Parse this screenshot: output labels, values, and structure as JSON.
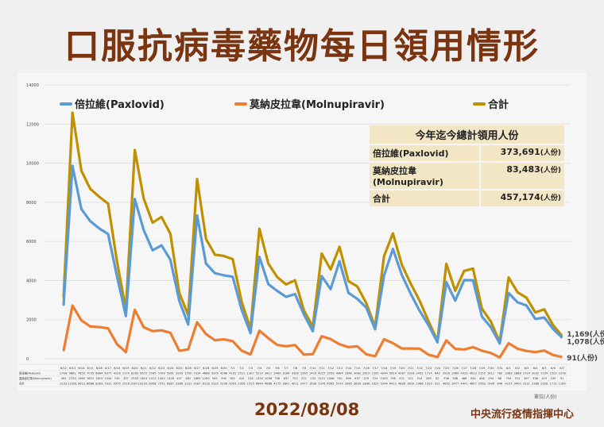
{
  "title": "口服抗病毒藥物每日領用情形",
  "footer": {
    "date": "2022/08/08",
    "org": "中央流行疫情指揮中心",
    "unit": "單位(人份)"
  },
  "summary": {
    "heading": "今年迄今總計領用人份",
    "rows": [
      {
        "label": "倍拉維(Paxlovid)",
        "value": "373,691",
        "unit": "(人份)"
      },
      {
        "label": "莫納皮拉韋(Molnupiravir)",
        "value": "83,483",
        "unit": "(人份)"
      },
      {
        "label": "合計",
        "value": "457,174",
        "unit": "(人份)"
      }
    ]
  },
  "end_labels": {
    "total": "1,169(人份)",
    "pax": "1,078(人份)",
    "mol": "91(人份)"
  },
  "table_labels": {
    "pax": "倍拉維(Paxlovid)",
    "mol": "莫納皮拉韋(Molnupiravir)",
    "total": "合計"
  },
  "chart_data": {
    "type": "line",
    "title": "口服抗病毒藥物每日領用情形",
    "ylim": [
      0,
      14000
    ],
    "yticks": [
      0,
      2000,
      4000,
      6000,
      8000,
      10000,
      12000,
      14000
    ],
    "grid": true,
    "legend_placement": "top",
    "categories": [
      "6/12",
      "6/13",
      "6/14",
      "6/15",
      "6/16",
      "6/17",
      "6/18",
      "6/19",
      "6/20",
      "6/21",
      "6/22",
      "6/23",
      "6/24",
      "6/25",
      "6/26",
      "6/27",
      "6/28",
      "6/29",
      "6/30",
      "7/1",
      "7/2",
      "7/3",
      "7/4",
      "7/5",
      "7/6",
      "7/7",
      "7/8",
      "7/9",
      "7/10",
      "7/11",
      "7/12",
      "7/13",
      "7/14",
      "7/15",
      "7/16",
      "7/17",
      "7/18",
      "7/19",
      "7/20",
      "7/21",
      "7/22",
      "7/23",
      "7/24",
      "7/25",
      "7/26",
      "7/27",
      "7/28",
      "7/29",
      "7/30",
      "7/31",
      "8/1",
      "8/2",
      "8/3",
      "8/4",
      "8/5",
      "8/6",
      "8/7"
    ],
    "series": [
      {
        "key": "pax",
        "name": "倍拉維(Paxlovid)",
        "color": "#5b9bd5",
        "values": [
          2728,
          9861,
          7653,
          7035,
          6664,
          6377,
          4226,
          2179,
          8169,
          6579,
          5545,
          5799,
          5061,
          2959,
          1750,
          7324,
          4868,
          4375,
          4266,
          4192,
          2511,
          1307,
          5210,
          3812,
          3469,
          3164,
          3308,
          2265,
          1403,
          4225,
          3559,
          4984,
          3369,
          3062,
          2619,
          1505,
          4244,
          5614,
          4287,
          3318,
          2452,
          1714,
          840,
          3916,
          2969,
          4023,
          4013,
          2155,
          1612,
          780,
          3363,
          2888,
          2724,
          2032,
          2109,
          1523,
          1078
        ]
      },
      {
        "key": "mol",
        "name": "莫納皮拉韋(Molnupiravir)",
        "color": "#ed7d31",
        "values": [
          405,
          2720,
          1960,
          1651,
          1619,
          1554,
          749,
          337,
          2502,
          1613,
          1413,
          1452,
          1326,
          407,
          481,
          1863,
          1260,
          945,
          990,
          901,
          415,
          218,
          1434,
          1056,
          706,
          637,
          703,
          212,
          233,
          1151,
          1006,
          740,
          596,
          637,
          229,
          124,
          1000,
          798,
          521,
          521,
          514,
          206,
          82,
          936,
          508,
          468,
          594,
          408,
          294,
          66,
          794,
          512,
          397,
          336,
          419,
          190,
          91
        ]
      },
      {
        "key": "total",
        "name": "合計",
        "color": "#bf9000",
        "values": [
          3133,
          12581,
          9613,
          8686,
          8283,
          7931,
          4975,
          2516,
          10671,
          8192,
          6958,
          7251,
          6387,
          3366,
          2231,
          9187,
          6128,
          5320,
          5256,
          5093,
          2926,
          1525,
          6644,
          4868,
          4175,
          3801,
          4011,
          2477,
          1636,
          5376,
          4565,
          5724,
          3965,
          3699,
          2848,
          1629,
          5244,
          6412,
          4808,
          3839,
          2966,
          1920,
          922,
          4852,
          3477,
          4491,
          4607,
          2563,
          1906,
          846,
          4157,
          3400,
          3121,
          2368,
          2528,
          1713,
          1169
        ]
      }
    ]
  }
}
